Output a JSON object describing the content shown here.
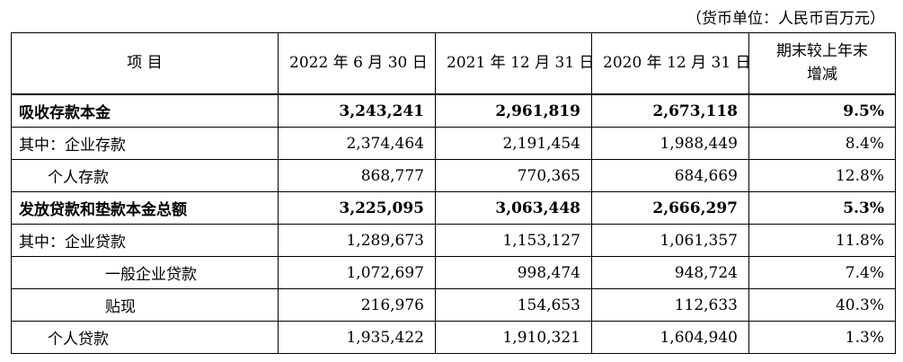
{
  "unit_note": "（货币单位：人民币百万元）",
  "headers": {
    "item": "项    目",
    "col1": "2022 年 6 月 30 日",
    "col2": "2021 年 12 月 31 日",
    "col3": "2020 年 12 月 31 日",
    "col4_line1": "期末较上年末",
    "col4_line2": "增减"
  },
  "rows": [
    {
      "label": "吸收存款本金",
      "v1": "3,243,241",
      "v2": "2,961,819",
      "v3": "2,673,118",
      "v4": "9.5%"
    },
    {
      "label": "其中：企业存款",
      "v1": "2,374,464",
      "v2": "2,191,454",
      "v3": "1,988,449",
      "v4": "8.4%"
    },
    {
      "label": "个人存款",
      "v1": "868,777",
      "v2": "770,365",
      "v3": "684,669",
      "v4": "12.8%"
    },
    {
      "label": "发放贷款和垫款本金总额",
      "v1": "3,225,095",
      "v2": "3,063,448",
      "v3": "2,666,297",
      "v4": "5.3%"
    },
    {
      "label": "其中：企业贷款",
      "v1": "1,289,673",
      "v2": "1,153,127",
      "v3": "1,061,357",
      "v4": "11.8%"
    },
    {
      "label": "一般企业贷款",
      "v1": "1,072,697",
      "v2": "998,474",
      "v3": "948,724",
      "v4": "7.4%"
    },
    {
      "label": "贴现",
      "v1": "216,976",
      "v2": "154,653",
      "v3": "112,633",
      "v4": "40.3%"
    },
    {
      "label": "个人贷款",
      "v1": "1,935,422",
      "v2": "1,910,321",
      "v3": "1,604,940",
      "v4": "1.3%"
    }
  ]
}
